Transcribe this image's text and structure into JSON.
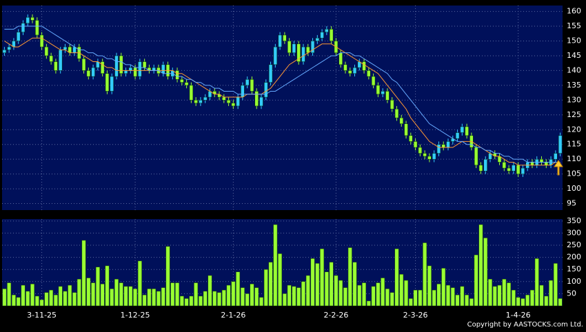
{
  "chart_data": {
    "type": "candlestick",
    "categories": [
      null,
      null,
      null,
      null,
      null,
      null,
      null,
      null,
      "3-11-25",
      null,
      null,
      null,
      null,
      null,
      null,
      null,
      null,
      null,
      null,
      null,
      null,
      null,
      null,
      null,
      null,
      null,
      null,
      null,
      "1-12-25",
      null,
      null,
      null,
      null,
      null,
      null,
      null,
      null,
      null,
      null,
      null,
      null,
      null,
      null,
      null,
      null,
      null,
      null,
      null,
      null,
      "2-1-26",
      null,
      null,
      null,
      null,
      null,
      null,
      null,
      null,
      null,
      null,
      null,
      null,
      null,
      null,
      null,
      null,
      null,
      null,
      null,
      null,
      null,
      "2-2-26",
      null,
      null,
      null,
      null,
      null,
      null,
      null,
      null,
      null,
      null,
      null,
      null,
      null,
      null,
      null,
      null,
      "2-3-26",
      null,
      null,
      null,
      null,
      null,
      null,
      null,
      null,
      null,
      null,
      null,
      null,
      null,
      null,
      null,
      null,
      null,
      null,
      null,
      null,
      null,
      "1-4-26",
      null,
      null,
      null,
      null,
      null,
      null,
      null,
      null,
      null
    ],
    "open": [
      146,
      147,
      148,
      150,
      153,
      156,
      158,
      157,
      152,
      148,
      145,
      143,
      140,
      147,
      148,
      146,
      148,
      144,
      140,
      138,
      141,
      143,
      139,
      133,
      138,
      145,
      139,
      140,
      141,
      138,
      143,
      141,
      140,
      141,
      139,
      142,
      138,
      140,
      137,
      136,
      135,
      130,
      129,
      130,
      131,
      133,
      132,
      131,
      130,
      129,
      128,
      131,
      135,
      137,
      133,
      128,
      131,
      136,
      142,
      148,
      152,
      150,
      146,
      149,
      143,
      148,
      146,
      150,
      151,
      153,
      154,
      150,
      146,
      142,
      140,
      139,
      141,
      143,
      140,
      138,
      135,
      132,
      133,
      130,
      127,
      124,
      122,
      118,
      116,
      114,
      112,
      111,
      110,
      112,
      115,
      114,
      116,
      117,
      119,
      121,
      118,
      114,
      108,
      106,
      110,
      112,
      111,
      109,
      107,
      106,
      108,
      105,
      107,
      109,
      108,
      110,
      109,
      108,
      110,
      112
    ],
    "high": [
      148,
      149,
      151,
      154,
      157,
      159,
      159,
      158,
      153,
      149,
      146,
      144,
      148,
      149,
      149,
      149,
      149,
      145,
      141,
      142,
      144,
      144,
      140,
      139,
      146,
      146,
      141,
      142,
      142,
      144,
      144,
      142,
      142,
      142,
      143,
      143,
      141,
      141,
      138,
      137,
      136,
      131,
      131,
      132,
      134,
      134,
      133,
      132,
      131,
      130,
      132,
      136,
      138,
      138,
      134,
      132,
      137,
      143,
      149,
      153,
      153,
      151,
      150,
      150,
      149,
      149,
      151,
      152,
      154,
      155,
      155,
      151,
      147,
      143,
      141,
      142,
      144,
      144,
      141,
      139,
      136,
      134,
      134,
      131,
      128,
      125,
      123,
      119,
      117,
      115,
      113,
      112,
      113,
      116,
      116,
      117,
      118,
      120,
      122,
      122,
      119,
      115,
      109,
      111,
      113,
      113,
      112,
      110,
      108,
      109,
      109,
      108,
      110,
      110,
      111,
      111,
      110,
      111,
      113,
      119
    ],
    "low": [
      145,
      146,
      147,
      149,
      152,
      155,
      156,
      151,
      147,
      144,
      142,
      139,
      139,
      146,
      145,
      145,
      143,
      139,
      137,
      137,
      140,
      138,
      132,
      132,
      137,
      138,
      138,
      139,
      137,
      137,
      140,
      139,
      139,
      138,
      138,
      137,
      137,
      136,
      135,
      134,
      129,
      128,
      128,
      129,
      130,
      131,
      130,
      129,
      128,
      127,
      127,
      130,
      134,
      132,
      127,
      127,
      130,
      135,
      141,
      147,
      149,
      145,
      145,
      142,
      142,
      145,
      145,
      149,
      150,
      152,
      149,
      145,
      141,
      139,
      138,
      138,
      140,
      139,
      137,
      134,
      131,
      131,
      129,
      126,
      123,
      121,
      117,
      115,
      113,
      111,
      110,
      109,
      109,
      111,
      113,
      113,
      115,
      116,
      118,
      117,
      113,
      107,
      105,
      105,
      109,
      110,
      108,
      106,
      105,
      105,
      104,
      104,
      106,
      107,
      107,
      108,
      107,
      107,
      109,
      111
    ],
    "close": [
      147,
      148,
      150,
      153,
      156,
      158,
      157,
      152,
      148,
      145,
      143,
      140,
      147,
      148,
      146,
      148,
      144,
      140,
      138,
      141,
      143,
      139,
      133,
      138,
      145,
      139,
      140,
      141,
      138,
      143,
      141,
      140,
      141,
      139,
      142,
      138,
      140,
      137,
      136,
      135,
      130,
      129,
      130,
      131,
      133,
      132,
      131,
      130,
      129,
      128,
      131,
      135,
      137,
      133,
      128,
      131,
      136,
      142,
      148,
      152,
      150,
      146,
      149,
      143,
      148,
      146,
      150,
      151,
      153,
      154,
      150,
      146,
      142,
      140,
      139,
      141,
      143,
      140,
      138,
      135,
      132,
      133,
      130,
      127,
      124,
      122,
      118,
      116,
      114,
      112,
      111,
      110,
      112,
      115,
      114,
      116,
      117,
      119,
      121,
      118,
      114,
      108,
      106,
      110,
      112,
      111,
      109,
      107,
      106,
      108,
      105,
      107,
      109,
      108,
      110,
      109,
      108,
      110,
      112,
      118
    ],
    "up_color": "#33ccff",
    "down_color": "#99ff33",
    "lines": [
      {
        "color": "#ff9933",
        "values": [
          150,
          149,
          148,
          148,
          149,
          150,
          151,
          151,
          151,
          150,
          149,
          148,
          147,
          147,
          146,
          146,
          146,
          145,
          144,
          143,
          143,
          142,
          141,
          141,
          140,
          140,
          140,
          140,
          140,
          140,
          140,
          140,
          140,
          140,
          140,
          140,
          140,
          139,
          139,
          138,
          137,
          136,
          135,
          134,
          133,
          132,
          132,
          131,
          131,
          131,
          131,
          131,
          132,
          132,
          132,
          132,
          133,
          134,
          136,
          138,
          140,
          142,
          143,
          144,
          145,
          146,
          147,
          148,
          149,
          149,
          149,
          148,
          147,
          146,
          145,
          144,
          143,
          142,
          141,
          140,
          139,
          137,
          135,
          133,
          131,
          129,
          127,
          124,
          122,
          120,
          118,
          116,
          115,
          114,
          114,
          114,
          114,
          115,
          116,
          116,
          116,
          115,
          114,
          113,
          112,
          111,
          111,
          110,
          109,
          109,
          108,
          108,
          108,
          108,
          108,
          108,
          108,
          108,
          109,
          109
        ]
      },
      {
        "color": "#66aaff",
        "values": [
          154,
          154,
          154,
          155,
          155,
          155,
          155,
          155,
          155,
          154,
          153,
          152,
          151,
          150,
          149,
          148,
          147,
          147,
          146,
          146,
          145,
          145,
          144,
          144,
          143,
          143,
          142,
          142,
          141,
          141,
          141,
          140,
          140,
          140,
          139,
          139,
          139,
          138,
          138,
          137,
          137,
          136,
          136,
          135,
          135,
          134,
          134,
          133,
          133,
          133,
          132,
          132,
          132,
          132,
          132,
          132,
          132,
          133,
          133,
          134,
          135,
          136,
          137,
          138,
          139,
          140,
          141,
          142,
          143,
          144,
          145,
          145,
          146,
          146,
          146,
          145,
          145,
          144,
          143,
          142,
          141,
          140,
          139,
          137,
          136,
          134,
          132,
          130,
          128,
          126,
          124,
          122,
          121,
          120,
          119,
          118,
          117,
          116,
          116,
          115,
          115,
          114,
          114,
          113,
          113,
          112,
          112,
          111,
          111,
          110,
          110,
          110,
          109,
          109,
          109,
          109,
          109,
          109,
          109,
          109
        ]
      }
    ],
    "ylim": [
      92.8,
      162
    ],
    "yticks": [
      95,
      100,
      105,
      110,
      115,
      120,
      125,
      130,
      135,
      140,
      145,
      150,
      155,
      160
    ],
    "grid": true,
    "volume": {
      "color": "#99ff33",
      "ylim": [
        0,
        358
      ],
      "yticks": [
        50,
        100,
        150,
        200,
        250,
        300,
        350
      ],
      "values": [
        70,
        95,
        45,
        35,
        85,
        60,
        90,
        40,
        25,
        55,
        65,
        45,
        80,
        60,
        85,
        55,
        110,
        270,
        115,
        95,
        160,
        90,
        165,
        70,
        110,
        95,
        80,
        80,
        70,
        185,
        45,
        70,
        70,
        60,
        75,
        245,
        95,
        95,
        40,
        30,
        40,
        95,
        40,
        60,
        125,
        60,
        55,
        65,
        85,
        100,
        140,
        75,
        50,
        90,
        75,
        35,
        150,
        180,
        335,
        215,
        50,
        85,
        80,
        75,
        100,
        125,
        195,
        175,
        235,
        140,
        180,
        125,
        105,
        75,
        240,
        180,
        85,
        95,
        20,
        80,
        95,
        115,
        70,
        55,
        235,
        130,
        105,
        30,
        65,
        65,
        260,
        165,
        65,
        90,
        155,
        85,
        75,
        45,
        80,
        45,
        30,
        210,
        335,
        280,
        110,
        80,
        85,
        110,
        95,
        65,
        35,
        30,
        45,
        65,
        195,
        85,
        40,
        105,
        175,
        30
      ]
    }
  },
  "footer": "Copyright by AASTOCKS.com Ltd."
}
